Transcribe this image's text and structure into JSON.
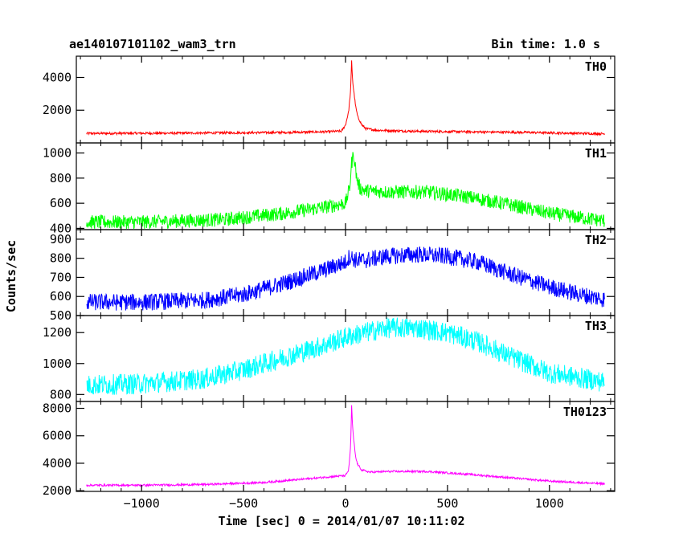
{
  "chart_data": {
    "type": "line",
    "title_left": "ae140107101102_wam3_trn",
    "title_right": "Bin time: 1.0 s",
    "xlabel": "Time [sec] 0 = 2014/01/07 10:11:02",
    "ylabel": "Counts/sec",
    "xlim": [
      -1320,
      1320
    ],
    "xticks": [
      -1000,
      -500,
      0,
      500,
      1000
    ],
    "panels": [
      {
        "name": "TH0",
        "color": "#ff0000",
        "ylim": [
          0,
          5300
        ],
        "yticks": [
          2000,
          4000
        ],
        "noise": 45,
        "x": [
          -1270,
          -800,
          -300,
          -100,
          -20,
          0,
          15,
          25,
          30,
          35,
          40,
          50,
          60,
          80,
          100,
          150,
          300,
          600,
          900,
          1270
        ],
        "y": [
          580,
          600,
          640,
          680,
          720,
          1100,
          1900,
          3200,
          5000,
          3800,
          3200,
          2200,
          1600,
          1100,
          870,
          780,
          720,
          680,
          640,
          560
        ]
      },
      {
        "name": "TH1",
        "color": "#00ff00",
        "ylim": [
          390,
          1080
        ],
        "yticks": [
          400,
          600,
          800,
          1000
        ],
        "noise": 35,
        "x": [
          -1270,
          -1000,
          -600,
          -300,
          -100,
          0,
          20,
          30,
          40,
          55,
          70,
          100,
          200,
          400,
          600,
          800,
          1000,
          1270
        ],
        "y": [
          450,
          450,
          470,
          520,
          570,
          600,
          720,
          920,
          990,
          800,
          720,
          700,
          690,
          690,
          650,
          590,
          520,
          460
        ]
      },
      {
        "name": "TH2",
        "color": "#0000ff",
        "ylim": [
          500,
          950
        ],
        "yticks": [
          500,
          600,
          700,
          800,
          900
        ],
        "noise": 28,
        "x": [
          -1270,
          -1000,
          -700,
          -500,
          -300,
          -100,
          0,
          20,
          50,
          100,
          200,
          350,
          500,
          650,
          800,
          1000,
          1150,
          1270
        ],
        "y": [
          570,
          570,
          580,
          610,
          670,
          740,
          780,
          810,
          790,
          790,
          810,
          820,
          810,
          780,
          720,
          650,
          610,
          585
        ]
      },
      {
        "name": "TH3",
        "color": "#00ffff",
        "ylim": [
          755,
          1310
        ],
        "yticks": [
          800,
          1000,
          1200
        ],
        "noise": 42,
        "x": [
          -1270,
          -1000,
          -700,
          -500,
          -300,
          -100,
          0,
          100,
          200,
          350,
          500,
          650,
          800,
          1000,
          1270
        ],
        "y": [
          860,
          870,
          900,
          960,
          1040,
          1120,
          1170,
          1200,
          1230,
          1230,
          1200,
          1140,
          1050,
          940,
          880
        ]
      },
      {
        "name": "TH0123",
        "color": "#ff00ff",
        "ylim": [
          1950,
          8500
        ],
        "yticks": [
          2000,
          4000,
          6000,
          8000
        ],
        "noise": 45,
        "x": [
          -1270,
          -1000,
          -700,
          -400,
          -200,
          -50,
          0,
          15,
          25,
          30,
          35,
          40,
          50,
          60,
          80,
          120,
          200,
          400,
          600,
          800,
          1000,
          1270
        ],
        "y": [
          2400,
          2400,
          2450,
          2600,
          2850,
          3050,
          3100,
          3500,
          5200,
          8200,
          6600,
          5700,
          4400,
          3900,
          3500,
          3350,
          3400,
          3400,
          3200,
          2950,
          2700,
          2500
        ]
      }
    ]
  }
}
